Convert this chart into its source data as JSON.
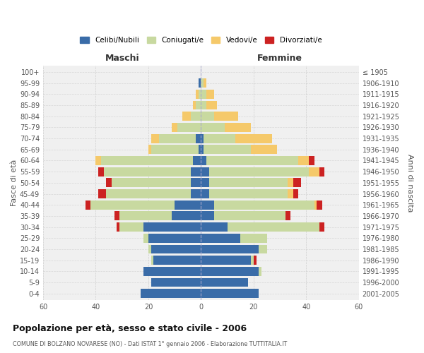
{
  "age_groups": [
    "0-4",
    "5-9",
    "10-14",
    "15-19",
    "20-24",
    "25-29",
    "30-34",
    "35-39",
    "40-44",
    "45-49",
    "50-54",
    "55-59",
    "60-64",
    "65-69",
    "70-74",
    "75-79",
    "80-84",
    "85-89",
    "90-94",
    "95-99",
    "100+"
  ],
  "birth_years": [
    "2001-2005",
    "1996-2000",
    "1991-1995",
    "1986-1990",
    "1981-1985",
    "1976-1980",
    "1971-1975",
    "1966-1970",
    "1961-1965",
    "1956-1960",
    "1951-1955",
    "1946-1950",
    "1941-1945",
    "1936-1940",
    "1931-1935",
    "1926-1930",
    "1921-1925",
    "1916-1920",
    "1911-1915",
    "1906-1910",
    "≤ 1905"
  ],
  "males": {
    "celibi": [
      23,
      19,
      22,
      18,
      19,
      20,
      22,
      11,
      10,
      4,
      4,
      4,
      3,
      1,
      2,
      0,
      0,
      0,
      0,
      1,
      0
    ],
    "coniugati": [
      0,
      0,
      0,
      1,
      1,
      2,
      9,
      20,
      32,
      32,
      30,
      33,
      35,
      18,
      14,
      9,
      4,
      2,
      1,
      0,
      0
    ],
    "vedovi": [
      0,
      0,
      0,
      0,
      0,
      0,
      0,
      0,
      0,
      0,
      0,
      0,
      2,
      1,
      3,
      2,
      3,
      1,
      1,
      0,
      0
    ],
    "divorziati": [
      0,
      0,
      0,
      0,
      0,
      0,
      1,
      2,
      2,
      3,
      2,
      2,
      0,
      0,
      0,
      0,
      0,
      0,
      0,
      0,
      0
    ]
  },
  "females": {
    "nubili": [
      22,
      18,
      22,
      19,
      22,
      15,
      10,
      5,
      5,
      3,
      3,
      3,
      2,
      1,
      1,
      0,
      0,
      0,
      0,
      0,
      0
    ],
    "coniugate": [
      0,
      0,
      1,
      1,
      3,
      10,
      35,
      27,
      38,
      30,
      30,
      38,
      35,
      18,
      12,
      9,
      5,
      2,
      2,
      1,
      0
    ],
    "vedove": [
      0,
      0,
      0,
      0,
      0,
      0,
      0,
      0,
      1,
      2,
      2,
      4,
      4,
      10,
      14,
      10,
      9,
      4,
      3,
      1,
      0
    ],
    "divorziate": [
      0,
      0,
      0,
      1,
      0,
      0,
      2,
      2,
      2,
      2,
      3,
      2,
      2,
      0,
      0,
      0,
      0,
      0,
      0,
      0,
      0
    ]
  },
  "colors": {
    "celibi": "#3a6ca8",
    "coniugati": "#c8d9a0",
    "vedovi": "#f5c96a",
    "divorziati": "#cc2222"
  },
  "title": "Popolazione per età, sesso e stato civile - 2006",
  "subtitle": "COMUNE DI BOLZANO NOVARESE (NO) - Dati ISTAT 1° gennaio 2006 - Elaborazione TUTTITALIA.IT",
  "xlabel_left": "Maschi",
  "xlabel_right": "Femmine",
  "ylabel_left": "Fasce di età",
  "ylabel_right": "Anni di nascita",
  "xlim": 60,
  "legend_labels": [
    "Celibi/Nubili",
    "Coniugati/e",
    "Vedovi/e",
    "Divorziati/e"
  ],
  "background_color": "#ffffff",
  "plot_bg": "#f0f0f0",
  "grid_color": "#cccccc"
}
